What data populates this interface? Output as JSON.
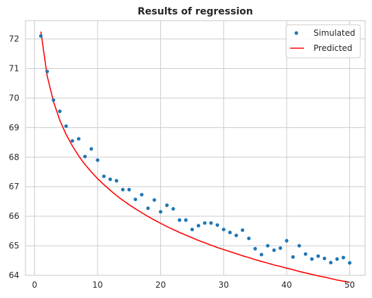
{
  "chart_data": {
    "type": "scatter",
    "title": "Results of regression",
    "xlabel": "",
    "ylabel": "",
    "xlim": [
      -1.45,
      52.45
    ],
    "ylim": [
      64.0,
      72.62
    ],
    "xticks": [
      0,
      10,
      20,
      30,
      40,
      50
    ],
    "yticks": [
      64,
      65,
      66,
      67,
      68,
      69,
      70,
      71,
      72
    ],
    "grid": true,
    "legend_position": "top-right",
    "series": [
      {
        "name": "Simulated",
        "type": "scatter",
        "color": "#1f77b4",
        "x": [
          1,
          2,
          3,
          4,
          5,
          6,
          7,
          8,
          9,
          10,
          11,
          12,
          13,
          14,
          15,
          16,
          17,
          18,
          19,
          20,
          21,
          22,
          23,
          24,
          25,
          26,
          27,
          28,
          29,
          30,
          31,
          32,
          33,
          34,
          35,
          36,
          37,
          38,
          39,
          40,
          41,
          42,
          43,
          44,
          45,
          46,
          47,
          48,
          49,
          50
        ],
        "y": [
          72.1,
          70.9,
          69.93,
          69.55,
          69.05,
          68.55,
          68.62,
          68.02,
          68.28,
          67.9,
          67.35,
          67.25,
          67.2,
          66.9,
          66.9,
          66.57,
          66.73,
          66.27,
          66.55,
          66.15,
          66.37,
          66.25,
          65.87,
          65.87,
          65.55,
          65.68,
          65.77,
          65.77,
          65.7,
          65.55,
          65.45,
          65.35,
          65.53,
          65.25,
          64.9,
          64.7,
          65.0,
          64.85,
          64.92,
          65.17,
          64.62,
          65.0,
          64.72,
          64.55,
          64.65,
          64.57,
          64.43,
          64.55,
          64.6,
          64.42
        ]
      },
      {
        "name": "Predicted",
        "type": "line",
        "color": "#ff0000",
        "x": [
          1,
          2,
          3,
          4,
          5,
          6,
          7,
          8,
          9,
          10,
          11,
          12,
          13,
          14,
          15,
          16,
          17,
          18,
          19,
          20,
          21,
          22,
          23,
          24,
          25,
          26,
          27,
          28,
          29,
          30,
          31,
          32,
          33,
          34,
          35,
          36,
          37,
          38,
          39,
          40,
          41,
          42,
          43,
          44,
          45,
          46,
          47,
          48,
          49,
          50
        ],
        "y": [
          72.25,
          70.75,
          69.88,
          69.25,
          68.77,
          68.38,
          68.04,
          67.75,
          67.5,
          67.27,
          67.07,
          66.88,
          66.7,
          66.54,
          66.39,
          66.25,
          66.12,
          65.99,
          65.87,
          65.76,
          65.65,
          65.55,
          65.45,
          65.36,
          65.27,
          65.18,
          65.1,
          65.02,
          64.94,
          64.87,
          64.8,
          64.73,
          64.66,
          64.6,
          64.53,
          64.47,
          64.41,
          64.35,
          64.3,
          64.24,
          64.19,
          64.13,
          64.08,
          64.03,
          63.98,
          63.94,
          63.89,
          63.84,
          63.8,
          63.76
        ]
      }
    ]
  }
}
